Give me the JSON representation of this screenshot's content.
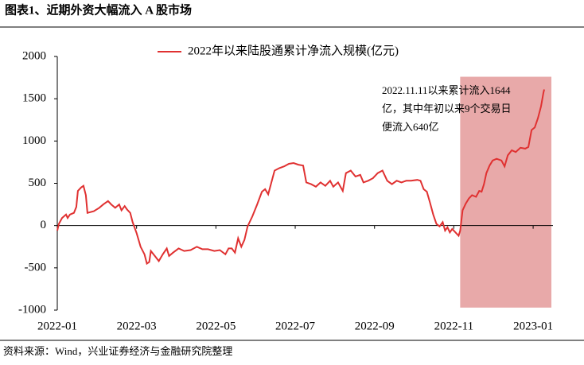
{
  "chart_data": {
    "type": "line",
    "title": "图表1、近期外资大幅流入 A 股市场",
    "source": "资料来源：Wind，兴业证券经济与金融研究院整理",
    "annotation": [
      "2022.11.11以来累计流入1644",
      "亿，其中年初以来9个交易日",
      "便流入640亿"
    ],
    "highlight": {
      "xlim": [
        10.16,
        12.46
      ],
      "ylim": [
        -970,
        1760
      ],
      "color": "#e8a9a9"
    },
    "xlim": [
      0,
      12.5
    ],
    "xticks": [
      {
        "value": 0,
        "label": "2022-01"
      },
      {
        "value": 2,
        "label": "2022-03"
      },
      {
        "value": 4,
        "label": "2022-05"
      },
      {
        "value": 6,
        "label": "2022-07"
      },
      {
        "value": 8,
        "label": "2022-09"
      },
      {
        "value": 10,
        "label": "2022-11"
      },
      {
        "value": 12,
        "label": "2023-01"
      }
    ],
    "ylim": [
      -1000,
      2000
    ],
    "yticks": [
      -1000,
      -500,
      0,
      500,
      1000,
      1500,
      2000
    ],
    "legend": "top",
    "x": [
      0,
      0.04,
      0.12,
      0.22,
      0.26,
      0.32,
      0.42,
      0.48,
      0.52,
      0.6,
      0.66,
      0.72,
      0.76,
      0.92,
      1.06,
      1.16,
      1.28,
      1.36,
      1.46,
      1.56,
      1.62,
      1.7,
      1.76,
      1.84,
      1.9,
      2.0,
      2.1,
      2.2,
      2.26,
      2.32,
      2.36,
      2.46,
      2.56,
      2.66,
      2.76,
      2.82,
      2.92,
      3.06,
      3.2,
      3.36,
      3.52,
      3.66,
      3.8,
      3.96,
      4.1,
      4.24,
      4.32,
      4.4,
      4.48,
      4.56,
      4.64,
      4.72,
      4.8,
      4.92,
      5.04,
      5.16,
      5.24,
      5.32,
      5.4,
      5.48,
      5.6,
      5.72,
      5.84,
      5.96,
      6.08,
      6.2,
      6.28,
      6.4,
      6.52,
      6.64,
      6.76,
      6.88,
      6.96,
      7.08,
      7.2,
      7.28,
      7.4,
      7.52,
      7.64,
      7.72,
      7.84,
      7.96,
      8.08,
      8.2,
      8.32,
      8.44,
      8.56,
      8.68,
      8.8,
      8.92,
      9.08,
      9.16,
      9.24,
      9.32,
      9.4,
      9.48,
      9.56,
      9.64,
      9.72,
      9.78,
      9.84,
      9.9,
      9.96,
      10.04,
      10.12,
      10.16,
      10.22,
      10.3,
      10.38,
      10.46,
      10.56,
      10.64,
      10.7,
      10.76,
      10.82,
      10.9,
      10.98,
      11.08,
      11.2,
      11.28,
      11.36,
      11.46,
      11.56,
      11.68,
      11.8,
      11.88,
      11.96,
      12.04,
      12.12,
      12.2,
      12.26,
      12.28
    ],
    "series": [
      {
        "name": "2022年以来陆股通累计净流入规模(亿元)",
        "color": "#e03131",
        "values": [
          -60,
          20,
          90,
          130,
          90,
          130,
          150,
          220,
          410,
          450,
          470,
          360,
          150,
          170,
          210,
          250,
          290,
          250,
          210,
          250,
          180,
          230,
          190,
          150,
          40,
          -90,
          -250,
          -340,
          -450,
          -430,
          -300,
          -360,
          -420,
          -340,
          -270,
          -360,
          -320,
          -270,
          -300,
          -290,
          -250,
          -280,
          -280,
          -300,
          -290,
          -340,
          -270,
          -270,
          -320,
          -150,
          -250,
          -170,
          -10,
          110,
          250,
          400,
          430,
          370,
          510,
          650,
          680,
          700,
          730,
          740,
          720,
          710,
          510,
          490,
          460,
          510,
          470,
          530,
          460,
          510,
          410,
          620,
          650,
          580,
          600,
          510,
          530,
          560,
          620,
          650,
          530,
          490,
          530,
          510,
          530,
          530,
          540,
          530,
          430,
          400,
          270,
          130,
          20,
          -10,
          40,
          -60,
          -20,
          -80,
          -40,
          -80,
          -120,
          -60,
          180,
          260,
          320,
          360,
          340,
          410,
          400,
          490,
          620,
          710,
          770,
          790,
          770,
          700,
          830,
          890,
          870,
          920,
          910,
          930,
          1130,
          1160,
          1270,
          1410,
          1570,
          1610
        ]
      }
    ]
  }
}
